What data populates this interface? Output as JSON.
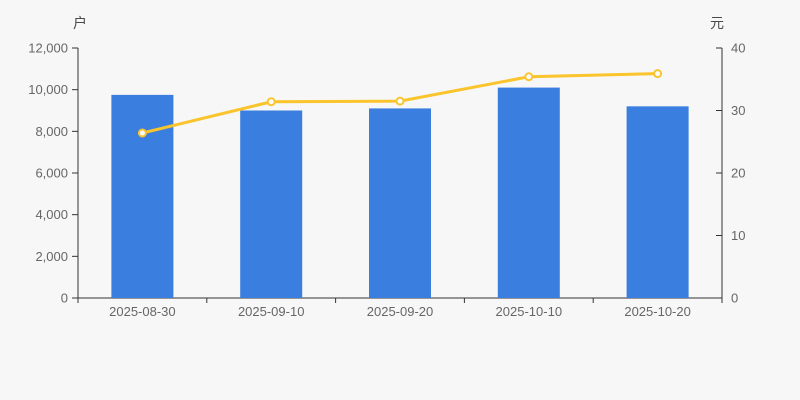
{
  "page": {
    "background": "#f7f7f7"
  },
  "chart_data": {
    "type": "bar",
    "subtype": "bar-line-combo",
    "categories": [
      "2025-08-30",
      "2025-09-10",
      "2025-09-20",
      "2025-10-10",
      "2025-10-20"
    ],
    "series": [
      {
        "name": "户",
        "type": "bar",
        "axis": "left",
        "color": "#3a7edf",
        "values": [
          9750,
          9000,
          9100,
          10100,
          9200
        ]
      },
      {
        "name": "元",
        "type": "line",
        "axis": "right",
        "color": "#fac42d",
        "marker": "hollow-circle",
        "marker_fill": "#ffffff",
        "values": [
          26.4,
          31.4,
          31.5,
          35.4,
          35.9
        ]
      }
    ],
    "left_axis": {
      "label": "户",
      "min": 0,
      "max": 12000,
      "tick_values": [
        0,
        2000,
        4000,
        6000,
        8000,
        10000,
        12000
      ],
      "tick_labels": [
        "0",
        "2,000",
        "4,000",
        "6,000",
        "8,000",
        "10,000",
        "12,000"
      ]
    },
    "right_axis": {
      "label": "元",
      "min": 0,
      "max": 40,
      "tick_values": [
        0,
        10,
        20,
        30,
        40
      ],
      "tick_labels": [
        "0",
        "10",
        "20",
        "30",
        "40"
      ]
    },
    "grid": false,
    "legend": "none",
    "axis_line_color": "#333333",
    "tick_label_color": "#666666",
    "axis_name_color": "#4a4a4a"
  }
}
